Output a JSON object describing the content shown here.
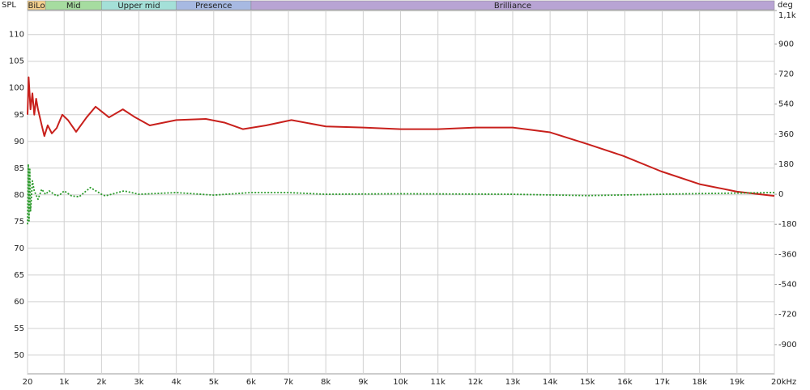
{
  "chart_data": {
    "type": "line",
    "y_label": "SPL",
    "y2_label": "deg",
    "xlim": [
      20,
      20000
    ],
    "ylim": [
      46.5,
      114.5
    ],
    "y2lim": [
      -1075,
      1100
    ],
    "xticks": [
      {
        "value": 20,
        "label": "20"
      },
      {
        "value": 1000,
        "label": "1k"
      },
      {
        "value": 2000,
        "label": "2k"
      },
      {
        "value": 3000,
        "label": "3k"
      },
      {
        "value": 4000,
        "label": "4k"
      },
      {
        "value": 5000,
        "label": "5k"
      },
      {
        "value": 6000,
        "label": "6k"
      },
      {
        "value": 7000,
        "label": "7k"
      },
      {
        "value": 8000,
        "label": "8k"
      },
      {
        "value": 9000,
        "label": "9k"
      },
      {
        "value": 10000,
        "label": "10k"
      },
      {
        "value": 11000,
        "label": "11k"
      },
      {
        "value": 12000,
        "label": "12k"
      },
      {
        "value": 13000,
        "label": "13k"
      },
      {
        "value": 14000,
        "label": "14k"
      },
      {
        "value": 15000,
        "label": "15k"
      },
      {
        "value": 16000,
        "label": "16k"
      },
      {
        "value": 17000,
        "label": "17k"
      },
      {
        "value": 18000,
        "label": "18k"
      },
      {
        "value": 19000,
        "label": "19k"
      },
      {
        "value": 20000,
        "label": "20kHz"
      }
    ],
    "yticks": [
      50,
      55,
      60,
      65,
      70,
      75,
      80,
      85,
      90,
      95,
      100,
      105,
      110
    ],
    "y2ticks": [
      {
        "value": 1100,
        "label": "1,1k"
      },
      900,
      720,
      540,
      360,
      180,
      0,
      -180,
      -360,
      -540,
      -720,
      -900
    ],
    "grid": true,
    "bands": [
      {
        "label": "BiLo",
        "start": 20,
        "end": 500,
        "color": "#f3cf8c"
      },
      {
        "label": "Mid",
        "start": 500,
        "end": 2000,
        "color": "#a6dca0"
      },
      {
        "label": "Upper mid",
        "start": 2000,
        "end": 4000,
        "color": "#a4e0d8"
      },
      {
        "label": "Presence",
        "start": 4000,
        "end": 6000,
        "color": "#a7b9e2"
      },
      {
        "label": "Brilliance",
        "start": 6000,
        "end": 20000,
        "color": "#b8a4d4"
      }
    ],
    "series": [
      {
        "color": "#c8201c",
        "dash": false,
        "x": [
          20,
          50,
          100,
          150,
          200,
          250,
          300,
          400,
          470,
          560,
          670,
          800,
          950,
          1100,
          1320,
          1600,
          1840,
          2200,
          2570,
          2900,
          3290,
          4000,
          4790,
          5300,
          5780,
          6400,
          7080,
          8000,
          9000,
          10000,
          11000,
          12000,
          13000,
          14000,
          15000,
          15950,
          16970,
          18000,
          19000,
          20000
        ],
        "values": [
          95,
          102,
          96,
          99,
          95,
          98,
          96,
          93,
          91,
          93,
          91.5,
          92.5,
          95,
          94,
          91.8,
          94.5,
          96.5,
          94.5,
          96,
          94.5,
          93,
          94,
          94.2,
          93.5,
          92.3,
          93,
          94,
          92.8,
          92.6,
          92.3,
          92.3,
          92.6,
          92.6,
          91.7,
          89.5,
          87.3,
          84.4,
          82,
          80.6,
          79.8
        ]
      },
      {
        "color": "#2a9a2a",
        "dash": true,
        "axis": "y2",
        "x": [
          20,
          40,
          60,
          80,
          100,
          150,
          200,
          300,
          400,
          500,
          600,
          800,
          900,
          1000,
          1200,
          1400,
          1700,
          2000,
          2100,
          2600,
          3000,
          4000,
          5000,
          6000,
          7000,
          8000,
          10000,
          13000,
          15000,
          17000,
          18000,
          20000
        ],
        "values": [
          -180,
          180,
          -160,
          150,
          -100,
          80,
          20,
          -30,
          30,
          0,
          20,
          -10,
          0,
          20,
          -10,
          -15,
          40,
          0,
          -10,
          20,
          0,
          10,
          -5,
          10,
          10,
          0,
          3,
          0,
          -8,
          0,
          4,
          10
        ]
      }
    ]
  }
}
